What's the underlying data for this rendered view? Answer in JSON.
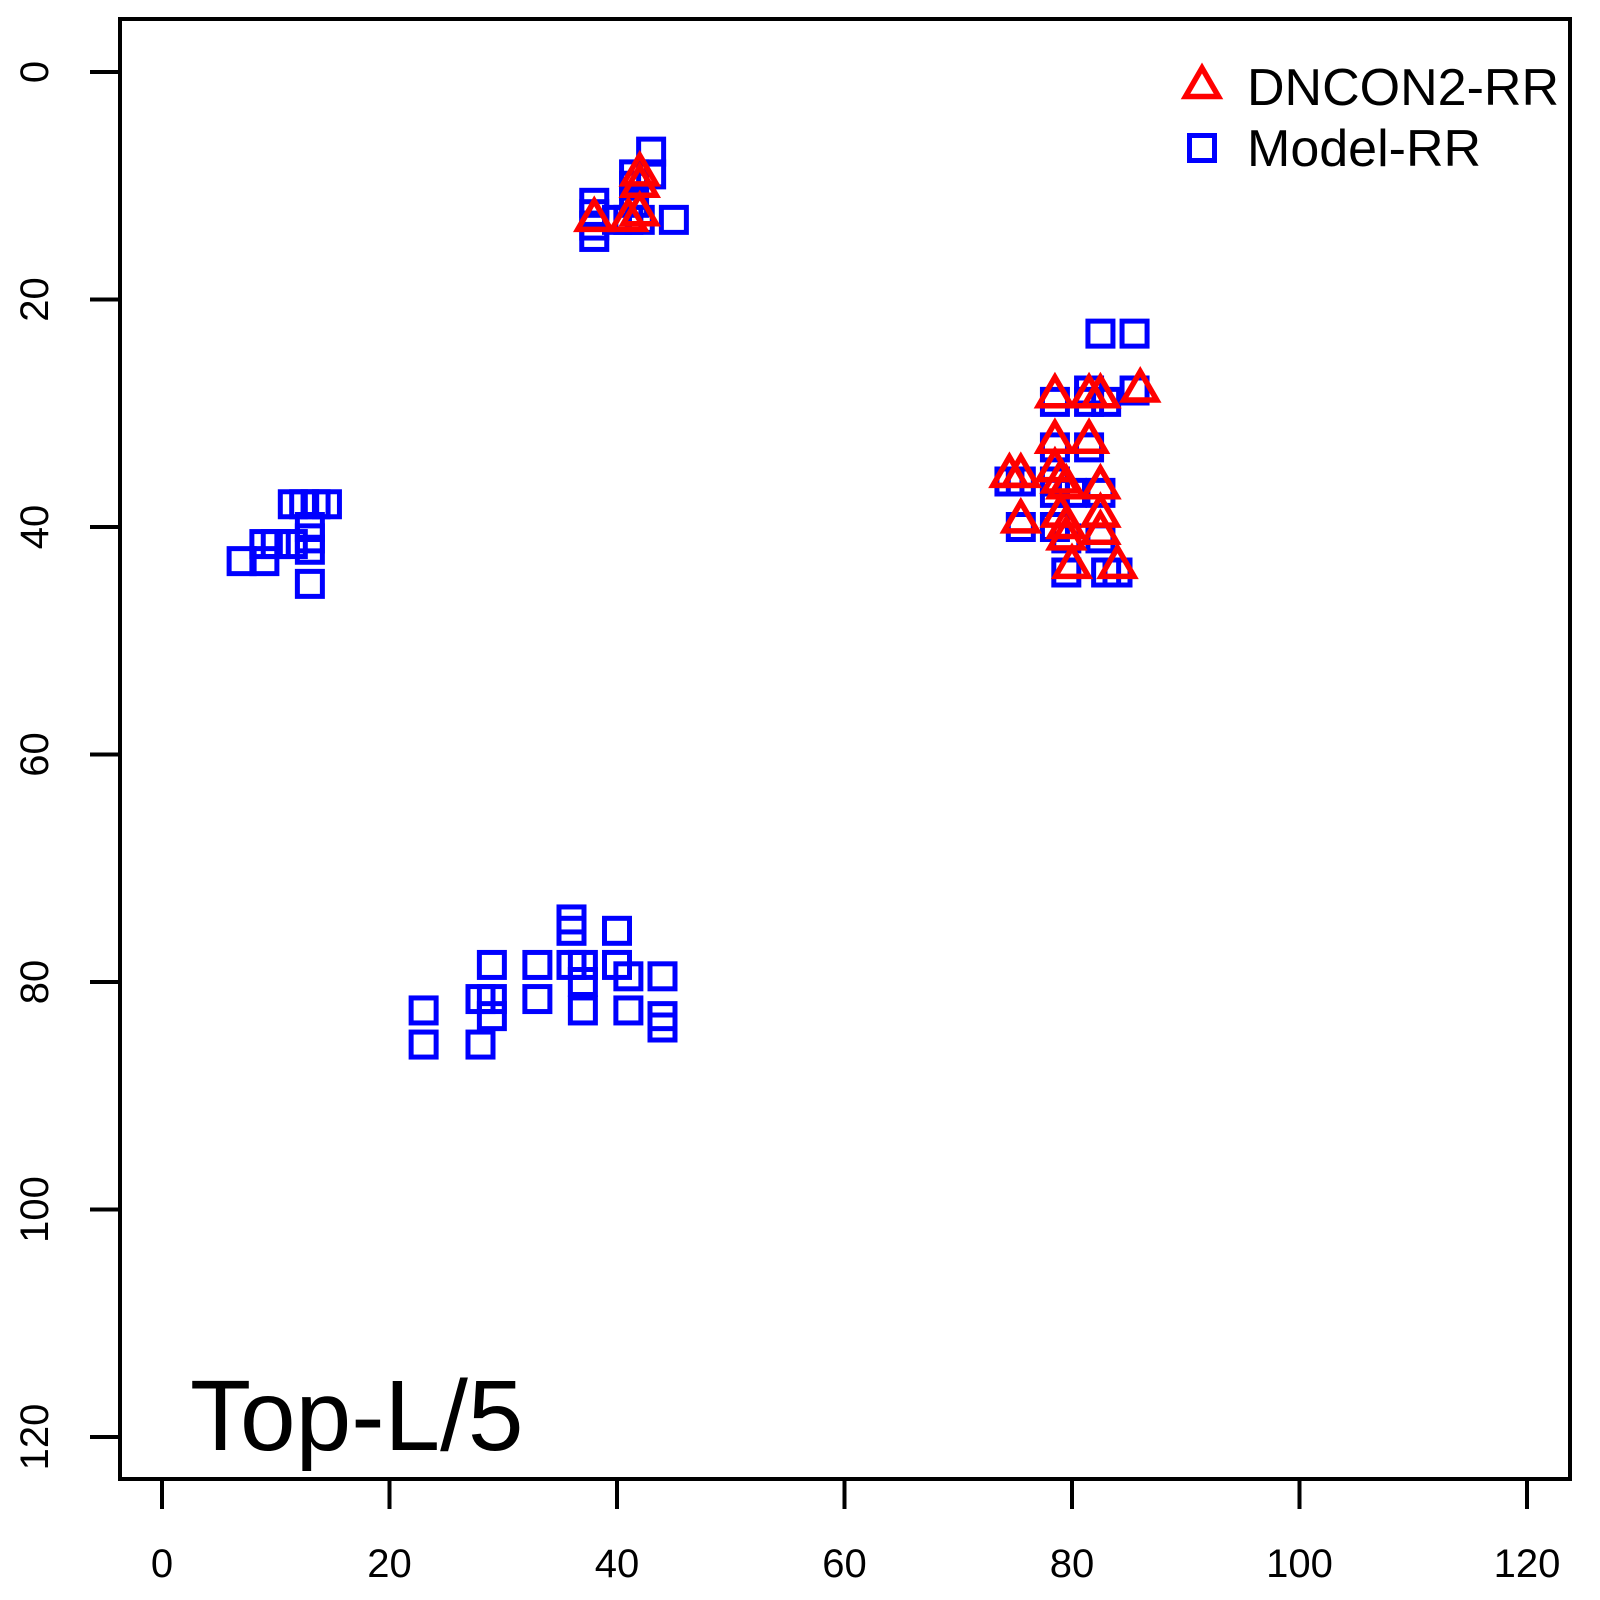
{
  "chart_data": {
    "type": "scatter",
    "title": "Top-L/5",
    "axes": {
      "xlim": [
        0,
        120
      ],
      "ylim": [
        0,
        120
      ],
      "y_axis_inverted": true,
      "grid": false,
      "x_tick_values": [
        0,
        20,
        40,
        60,
        80,
        100,
        120
      ],
      "y_tick_values": [
        0,
        20,
        40,
        60,
        80,
        100,
        120
      ],
      "x_ticks": [
        "0",
        "20",
        "40",
        "60",
        "80",
        "100",
        "120"
      ],
      "y_ticks": [
        "0",
        "20",
        "40",
        "60",
        "80",
        "100",
        "120"
      ],
      "axis_color": "#000000"
    },
    "legend": {
      "position": "top-right",
      "box": false,
      "items": [
        {
          "label": "DNCON2-RR",
          "marker": "open-triangle",
          "color": "#FF0000"
        },
        {
          "label": "Model-RR",
          "marker": "open-square",
          "color": "#0000FF"
        }
      ]
    },
    "series": [
      {
        "name": "Model-RR",
        "marker": "open-square",
        "color": "#0000FF",
        "mirrored": true,
        "points": [
          [
            43,
            7
          ],
          [
            41.5,
            9
          ],
          [
            43,
            9
          ],
          [
            41.5,
            10
          ],
          [
            41.5,
            11.5
          ],
          [
            40,
            13
          ],
          [
            41,
            13
          ],
          [
            42,
            13
          ],
          [
            45,
            13
          ],
          [
            38,
            11.5
          ],
          [
            38,
            12.5
          ],
          [
            38,
            13.5
          ],
          [
            38,
            14.5
          ],
          [
            82.5,
            23
          ],
          [
            85.5,
            23
          ],
          [
            85.5,
            28
          ],
          [
            81.5,
            28
          ],
          [
            81.5,
            29
          ],
          [
            78.5,
            29
          ],
          [
            83,
            29
          ],
          [
            78.5,
            33
          ],
          [
            81.5,
            33
          ],
          [
            74.5,
            36
          ],
          [
            75.5,
            36
          ],
          [
            78.5,
            36
          ],
          [
            78.5,
            37
          ],
          [
            80,
            37
          ],
          [
            82.5,
            37
          ],
          [
            75.5,
            40
          ],
          [
            78.5,
            40
          ],
          [
            79.5,
            41
          ],
          [
            82.5,
            41
          ],
          [
            79.5,
            44
          ],
          [
            83,
            44
          ],
          [
            84,
            44
          ]
        ]
      },
      {
        "name": "DNCON2-RR",
        "marker": "open-triangle",
        "color": "#FF0000",
        "mirrored": false,
        "points": [
          [
            42,
            9
          ],
          [
            42,
            10
          ],
          [
            42,
            12.5
          ],
          [
            41,
            13
          ],
          [
            38,
            13
          ],
          [
            78.5,
            28.5
          ],
          [
            81.5,
            28.5
          ],
          [
            82.5,
            28.5
          ],
          [
            86,
            28
          ],
          [
            78.5,
            32.5
          ],
          [
            81.5,
            32.5
          ],
          [
            74.5,
            35.5
          ],
          [
            75.5,
            35.5
          ],
          [
            78.5,
            35
          ],
          [
            79,
            36
          ],
          [
            79.5,
            36.5
          ],
          [
            82.5,
            36.5
          ],
          [
            75.5,
            39.5
          ],
          [
            79,
            39
          ],
          [
            79.5,
            40
          ],
          [
            79.5,
            41
          ],
          [
            82.5,
            39
          ],
          [
            82.5,
            40.5
          ],
          [
            80,
            43.5
          ],
          [
            84,
            43.5
          ]
        ]
      }
    ]
  }
}
